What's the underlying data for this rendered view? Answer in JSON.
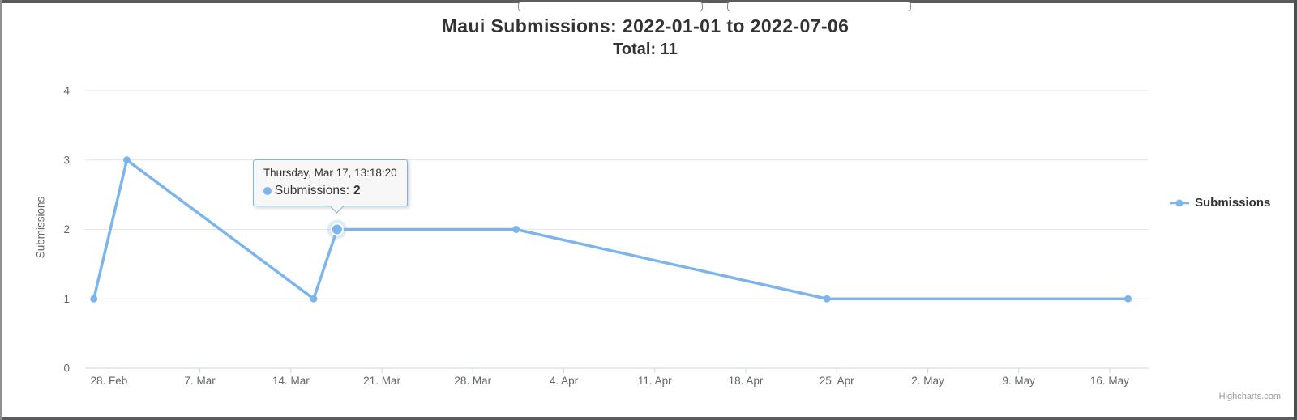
{
  "window": {
    "toolbar": {
      "inputs": [
        {
          "name": "left",
          "value": "",
          "placeholder": ""
        },
        {
          "name": "right",
          "value": "",
          "placeholder": ""
        }
      ]
    }
  },
  "chart_data": {
    "type": "line",
    "title": "Maui Submissions: 2022-01-01 to 2022-07-06",
    "subtitle": "Total: 11",
    "xlabel": "",
    "ylabel": "Submissions",
    "ylim": [
      0,
      4
    ],
    "y_ticks": [
      0,
      1,
      2,
      3,
      4
    ],
    "grid": true,
    "x_axis": {
      "type": "datetime",
      "min": "2022-02-26T04:00:00",
      "max": "2022-05-19T00:00:00",
      "ticks": [
        {
          "label": "28. Feb",
          "date": "2022-02-28T00:00:00"
        },
        {
          "label": "7. Mar",
          "date": "2022-03-07T00:00:00"
        },
        {
          "label": "14. Mar",
          "date": "2022-03-14T00:00:00"
        },
        {
          "label": "21. Mar",
          "date": "2022-03-21T00:00:00"
        },
        {
          "label": "28. Mar",
          "date": "2022-03-28T00:00:00"
        },
        {
          "label": "4. Apr",
          "date": "2022-04-04T00:00:00"
        },
        {
          "label": "11. Apr",
          "date": "2022-04-11T00:00:00"
        },
        {
          "label": "18. Apr",
          "date": "2022-04-18T00:00:00"
        },
        {
          "label": "25. Apr",
          "date": "2022-04-25T00:00:00"
        },
        {
          "label": "2. May",
          "date": "2022-05-02T00:00:00"
        },
        {
          "label": "9. May",
          "date": "2022-05-09T00:00:00"
        },
        {
          "label": "16. May",
          "date": "2022-05-16T00:00:00"
        }
      ]
    },
    "series": [
      {
        "name": "Submissions",
        "color": "#7cb5ec",
        "points": [
          {
            "date": "2022-02-26T20:00:00",
            "value": 1
          },
          {
            "date": "2022-03-01T09:00:00",
            "value": 3
          },
          {
            "date": "2022-03-15T18:00:00",
            "value": 1
          },
          {
            "date": "2022-03-17T13:18:20",
            "value": 2,
            "hovered": true
          },
          {
            "date": "2022-03-31T08:00:00",
            "value": 2
          },
          {
            "date": "2022-04-24T06:00:00",
            "value": 1
          },
          {
            "date": "2022-05-17T10:00:00",
            "value": 1
          }
        ]
      }
    ],
    "legend": {
      "position": "right",
      "items": [
        {
          "label": "Submissions"
        }
      ]
    }
  },
  "tooltip": {
    "header": "Thursday, Mar 17, 13:18:20",
    "series_label": "Submissions:",
    "value": "2"
  },
  "credits": "Highcharts.com",
  "colors": {
    "series": "#7cb5ec",
    "halo_opacity": "0.25",
    "grid": "#e6e6e6",
    "axis_line": "#ccd6eb",
    "axis_label": "#666666",
    "text_dark": "#333333",
    "credits": "#999999",
    "frame_bar": "#5c5c5e",
    "tooltip_bg": "#f7f7f7"
  }
}
